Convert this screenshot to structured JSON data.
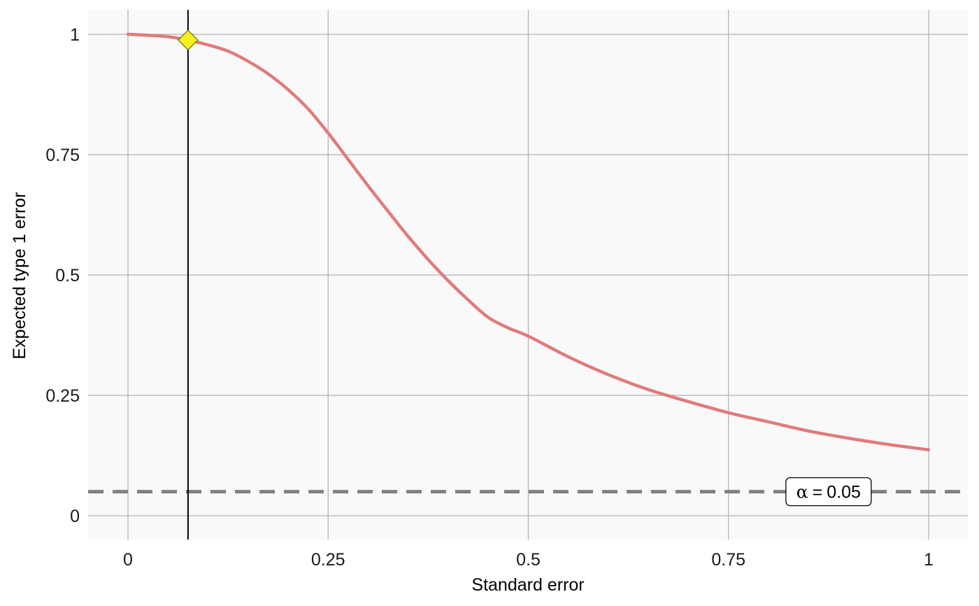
{
  "chart_data": {
    "type": "line",
    "title": "",
    "xlabel": "Standard error",
    "ylabel": "Expected type 1 error",
    "xlim": [
      -0.05,
      1.05
    ],
    "ylim": [
      -0.05,
      1.05
    ],
    "x_ticks": [
      0,
      0.25,
      0.5,
      0.75,
      1
    ],
    "x_tick_labels": [
      "0",
      "0.25",
      "0.5",
      "0.75",
      "1"
    ],
    "y_ticks": [
      0,
      0.25,
      0.5,
      0.75,
      1
    ],
    "y_tick_labels": [
      "0",
      "0.25",
      "0.5",
      "0.75",
      "1"
    ],
    "grid": true,
    "series": [
      {
        "color": "#e07b7b",
        "x": [
          0,
          0.025,
          0.05,
          0.075,
          0.1,
          0.125,
          0.15,
          0.175,
          0.2,
          0.225,
          0.25,
          0.275,
          0.3,
          0.325,
          0.35,
          0.375,
          0.4,
          0.425,
          0.45,
          0.475,
          0.5,
          0.55,
          0.6,
          0.65,
          0.7,
          0.75,
          0.8,
          0.85,
          0.9,
          0.95,
          1
        ],
        "y": [
          1.0,
          0.998,
          0.995,
          0.988,
          0.978,
          0.965,
          0.944,
          0.918,
          0.885,
          0.845,
          0.795,
          0.74,
          0.685,
          0.632,
          0.58,
          0.532,
          0.488,
          0.448,
          0.412,
          0.39,
          0.373,
          0.33,
          0.293,
          0.262,
          0.237,
          0.214,
          0.195,
          0.176,
          0.161,
          0.148,
          0.137
        ]
      }
    ],
    "marker_point": {
      "x": 0.075,
      "y": 0.988,
      "shape": "diamond",
      "color": "#f5ef1f"
    },
    "vertical_line_x": 0.075,
    "reference_line": {
      "y": 0.05,
      "style": "dashed",
      "color": "#808080"
    },
    "annotation": {
      "x": 0.875,
      "y": 0.05,
      "symbol": "α",
      "operator": "=",
      "value": "0.05"
    }
  }
}
